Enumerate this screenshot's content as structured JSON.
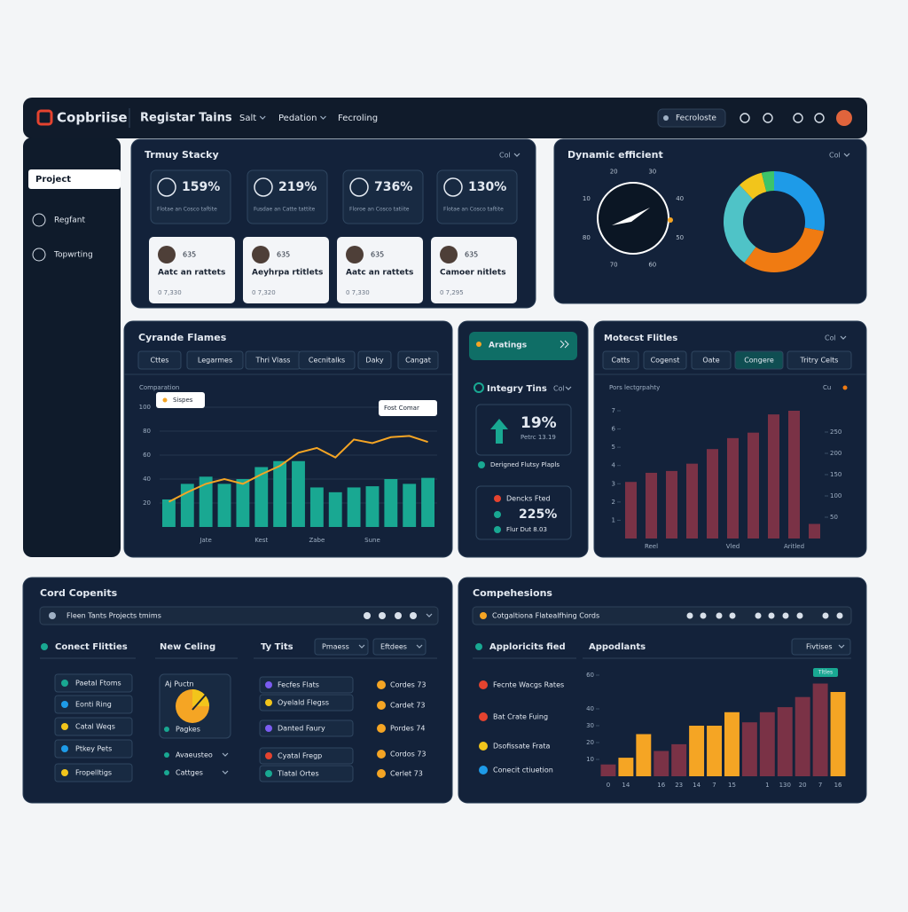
{
  "header": {
    "logo": "Copbriise",
    "title": "Registar Tains",
    "nav": [
      "Salt",
      "Pedation",
      "Fecroling"
    ],
    "search": "Fecroloste"
  },
  "sidebar": {
    "items": [
      "Project",
      "Regfant",
      "Topwrting"
    ]
  },
  "summary": {
    "title": "Trmuy Stacky",
    "menu": "Col",
    "stats": [
      {
        "value": "159%",
        "note": "Flotae an Cosco taftite"
      },
      {
        "value": "219%",
        "note": "Fusdae an Catte tattite"
      },
      {
        "value": "736%",
        "note": "Floroe an Cosco tatiite"
      },
      {
        "value": "130%",
        "note": "Flotae an Cosco taftite"
      }
    ],
    "people": [
      {
        "count": "635",
        "name": "Aatc an rattets",
        "meta": "0 7,330"
      },
      {
        "count": "635",
        "name": "Aeyhrpa rtitlets",
        "meta": "0 7,320"
      },
      {
        "count": "635",
        "name": "Aatc an rattets",
        "meta": "0 7,330"
      },
      {
        "count": "635",
        "name": "Camoer nitlets",
        "meta": "0 7,295"
      }
    ]
  },
  "efficiency": {
    "title": "Dynamic efficient",
    "menu": "Col",
    "gauge_labels": [
      "30",
      "40",
      "50",
      "60",
      "70",
      "80",
      "10",
      "20"
    ]
  },
  "trend": {
    "tabs": [
      "Cttes",
      "Legarmes",
      "Thri Vlass",
      "Cecnitalks",
      "Daky",
      "Cangat"
    ]
  },
  "integrity": {
    "button": "Aratings",
    "title": "Integry Tins",
    "menu": "Col",
    "value": "19%",
    "sub": "Petrc 13.19",
    "caption": "Derigned Flutsy Plapls",
    "items": [
      "Dencks Fted",
      "225%",
      "Flur Dut 8.03"
    ]
  },
  "metrics": {
    "title": "Motecst Flitles",
    "menu": "Col",
    "tabs": [
      "Catts",
      "Cogenst",
      "Oate",
      "Congere",
      "Tritry Celts"
    ],
    "subtitle": "Pors lectgrpahty",
    "submenu": "Cu"
  },
  "cards": {
    "title": "Cord Copenits",
    "search": "Fleen Tants Projects tmims",
    "col1": {
      "title": "Conect Flitties",
      "items": [
        "Paetal Ftoms",
        "Eonti Ring",
        "Catal Weqs",
        "Ptkey Pets",
        "Fropelltigs"
      ]
    },
    "col2": {
      "title": "New Celing",
      "card": "Aj Puctn",
      "card_caption": "Pagkes",
      "dropdowns": [
        "Avaeusteo",
        "Cattges"
      ]
    },
    "col3": {
      "title": "Ty Tits",
      "filters": [
        "Pmaess",
        "Eftdees"
      ],
      "items": [
        "Fecfes Flats",
        "Oyelald Flegss",
        "Danted Faury",
        "Cyatal Fregp",
        "Tlatal Ortes"
      ],
      "values": [
        "Cordes 73",
        "Cardet 73",
        "Pordes 74",
        "Cordos 73",
        "Cerlet 73"
      ]
    }
  },
  "comparisons": {
    "title": "Compehesions",
    "search": "Cotgaltiona Flatealfhing Cords",
    "legend_title": "Apploricits fied",
    "legend": [
      "Fecnte Wacgs Rates",
      "Bat Crate Fuing",
      "Dsofissate Frata",
      "Conecit ctiuetion"
    ],
    "chart_title": "Appodlants",
    "menu": "Fivtises",
    "badge": "Tltles"
  },
  "chart_data": [
    {
      "type": "donut",
      "values": [
        28,
        32,
        28,
        8,
        4
      ],
      "colors": [
        "#1e9be8",
        "#f07b12",
        "#4fc3c7",
        "#f2c51b",
        "#3cc46a"
      ]
    },
    {
      "type": "combo",
      "title": "Cyrande Flames",
      "y_label": "Comparation",
      "annotations": [
        "Sispes",
        "Fost Comar"
      ],
      "categories": [
        null,
        null,
        "Jate",
        null,
        null,
        "Kest",
        null,
        null,
        "Zabe",
        null,
        null,
        "Sune",
        null,
        null,
        null
      ],
      "series": [
        {
          "kind": "bar",
          "color": "#19a892",
          "values": [
            23,
            36,
            42,
            36,
            40,
            50,
            55,
            55,
            33,
            29,
            33,
            34,
            40,
            36,
            41
          ]
        },
        {
          "kind": "line",
          "color": "#f5a524",
          "values": [
            21,
            29,
            36,
            40,
            36,
            44,
            51,
            62,
            66,
            58,
            73,
            70,
            75,
            76,
            71
          ]
        }
      ],
      "ylim": [
        0,
        120
      ],
      "yticks": [
        20,
        40,
        60,
        80,
        100
      ],
      "grid": true
    },
    {
      "type": "bar",
      "color": "#7a3246",
      "categories": [
        null,
        "Reel",
        null,
        null,
        null,
        "Vled",
        null,
        null,
        "Aritled",
        null
      ],
      "values": [
        3.1,
        3.6,
        3.7,
        4.1,
        4.9,
        5.5,
        5.8,
        6.8,
        7.0,
        0.8
      ],
      "ylim": [
        0,
        7
      ],
      "yticks": [
        1,
        2,
        3,
        4,
        5,
        6,
        7
      ],
      "y2lim": [
        0,
        300
      ],
      "y2ticks": [
        50,
        100,
        150,
        200,
        250
      ],
      "grid": false
    },
    {
      "type": "bar",
      "categories": [
        "0",
        "14",
        null,
        "16",
        "23",
        "14",
        "7",
        "15",
        null,
        "1",
        "130",
        "20",
        "7",
        "16"
      ],
      "values": [
        7,
        11,
        25,
        15,
        19,
        30,
        30,
        38,
        32,
        38,
        41,
        47,
        55,
        50
      ],
      "colors": [
        "#7a3246",
        "#f5a524",
        "#f5a524",
        "#7a3246",
        "#7a3246",
        "#f5a524",
        "#f5a524",
        "#f5a524",
        "#7a3246",
        "#7a3246",
        "#7a3246",
        "#7a3246",
        "#7a3246",
        "#f5a524"
      ],
      "ylim": [
        0,
        70
      ],
      "yticks": [
        10,
        20,
        30,
        40,
        60
      ],
      "grid": false
    }
  ]
}
